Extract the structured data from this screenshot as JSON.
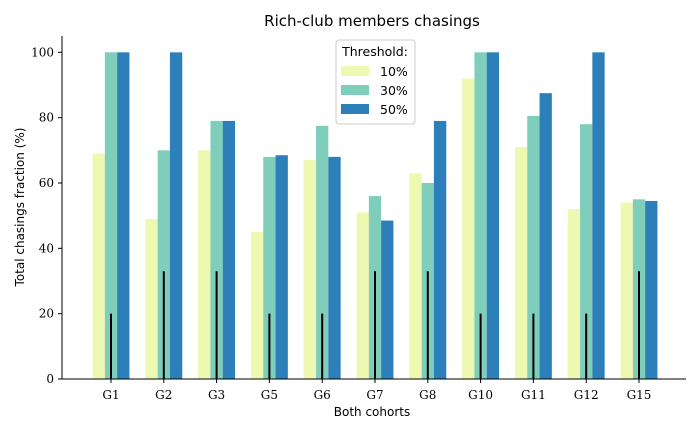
{
  "chart_data": {
    "type": "bar",
    "title": "Rich-club members chasings",
    "xlabel": "Both cohorts",
    "ylabel": "Total chasings fraction (%)",
    "ylim": [
      0,
      105
    ],
    "yticks": [
      "0",
      "20",
      "40",
      "60",
      "80",
      "100"
    ],
    "ytick_values": [
      0,
      20,
      40,
      60,
      80,
      100
    ],
    "categories": [
      "G1",
      "G2",
      "G3",
      "G5",
      "G6",
      "G7",
      "G8",
      "G10",
      "G11",
      "G12",
      "G15"
    ],
    "series": [
      {
        "name": "10%",
        "color": "#edf8b1",
        "values": [
          69,
          49,
          70,
          45,
          67,
          51,
          63,
          92,
          71,
          52,
          54
        ]
      },
      {
        "name": "30%",
        "color": "#7fcdbb",
        "values": [
          100,
          70,
          79,
          68,
          77.5,
          56,
          60,
          100,
          80.5,
          78,
          55
        ]
      },
      {
        "name": "50%",
        "color": "#2c7fb8",
        "values": [
          100,
          100,
          79,
          68.5,
          68,
          48.5,
          79,
          100,
          87.5,
          100,
          54.5
        ]
      }
    ],
    "reference_lines": [
      20,
      33,
      33,
      20,
      20,
      33,
      33,
      20,
      20,
      20,
      33
    ],
    "legend": {
      "title": "Threshold:",
      "placement": "top-center"
    },
    "grid": false
  }
}
